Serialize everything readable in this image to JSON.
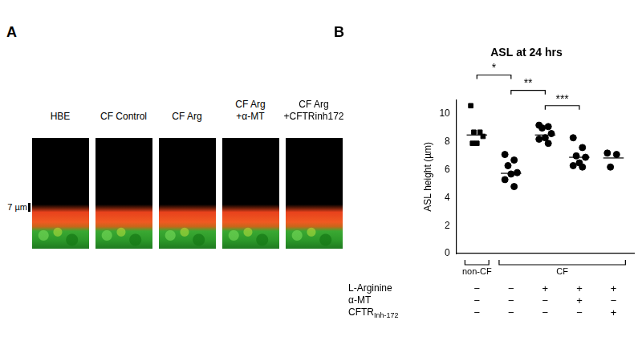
{
  "panel_a": {
    "label": "A",
    "images": [
      {
        "label": [
          "HBE"
        ]
      },
      {
        "label": [
          "CF Control"
        ]
      },
      {
        "label": [
          "CF Arg"
        ]
      },
      {
        "label": [
          "CF Arg",
          "+α-MT"
        ]
      },
      {
        "label": [
          "CF Arg",
          "+CFTRinh172"
        ]
      }
    ],
    "scale_bar": "7 µm"
  },
  "panel_b_label": "B",
  "chart_data": {
    "type": "scatter",
    "title": "ASL at 24 hrs",
    "y_label": "ASL height (µm)",
    "ylim": [
      0,
      11
    ],
    "yticks": [
      0,
      2,
      4,
      6,
      8,
      10
    ],
    "grid": false,
    "tick_labels": "y",
    "color": "#000000",
    "groups": [
      {
        "values": [
          10.6,
          8.7,
          8.7,
          8.4,
          7.9,
          7.9
        ],
        "mean": 8.5,
        "marker": "square"
      },
      {
        "values": [
          7.1,
          6.7,
          6.3,
          5.8,
          5.7,
          5.3,
          4.8
        ],
        "mean": 5.75,
        "marker": "circle"
      },
      {
        "values": [
          9.2,
          9.1,
          9.0,
          8.6,
          8.3,
          8.2,
          7.9
        ],
        "mean": 8.5,
        "marker": "circle"
      },
      {
        "values": [
          8.3,
          7.6,
          7.0,
          6.9,
          6.5,
          6.3,
          6.2
        ],
        "mean": 6.9,
        "marker": "circle"
      },
      {
        "values": [
          7.2,
          7.1,
          6.2
        ],
        "mean": 6.85,
        "marker": "circle"
      }
    ],
    "significance": [
      {
        "from": 0,
        "to": 1,
        "label": "*",
        "y": 12.8
      },
      {
        "from": 1,
        "to": 2,
        "label": "**",
        "y": 11.7
      },
      {
        "from": 2,
        "to": 3,
        "label": "***",
        "y": 10.6
      }
    ],
    "group_labels": [
      {
        "label": "non-CF",
        "from": 0,
        "to": 0
      },
      {
        "label": "CF",
        "from": 1,
        "to": 4
      }
    ],
    "treatments": [
      {
        "name": "L-Arginine",
        "signs": [
          "−",
          "−",
          "+",
          "+",
          "+"
        ]
      },
      {
        "name": "α-MT",
        "signs": [
          "−",
          "−",
          "−",
          "+",
          "−"
        ]
      },
      {
        "name": "CFTR",
        "name_sub": "Inh-172",
        "signs": [
          "−",
          "−",
          "−",
          "−",
          "+"
        ]
      }
    ]
  }
}
